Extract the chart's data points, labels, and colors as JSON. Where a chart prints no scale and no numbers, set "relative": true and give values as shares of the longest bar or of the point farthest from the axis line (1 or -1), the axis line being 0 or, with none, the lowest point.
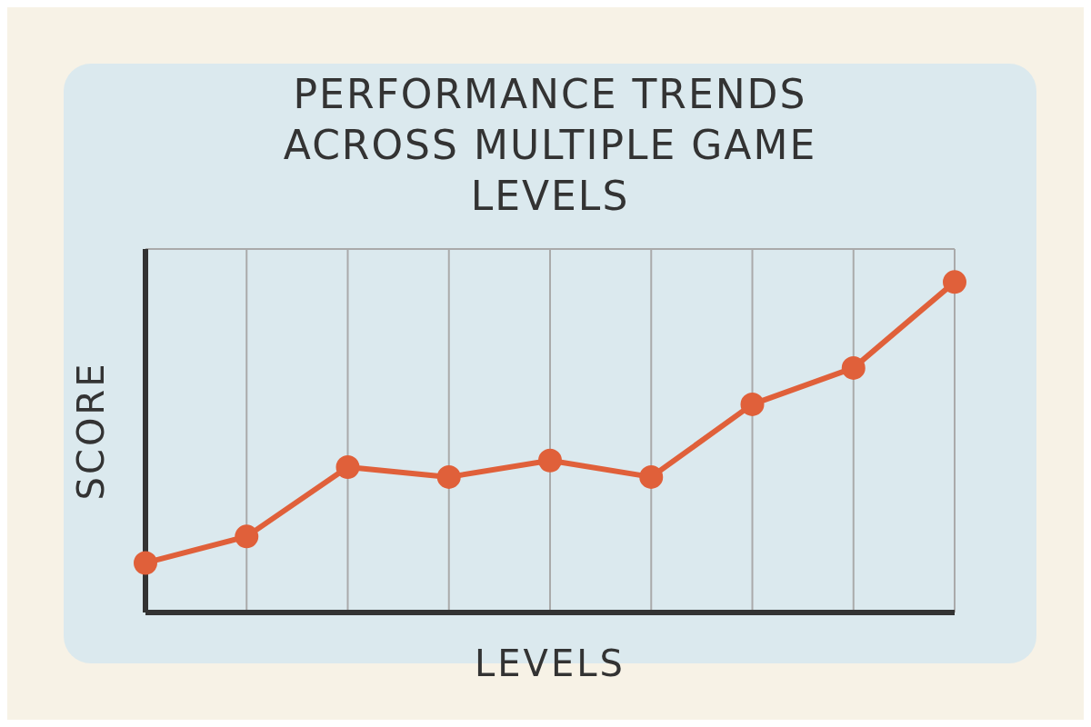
{
  "chart_data": {
    "type": "line",
    "title": "PERFORMANCE TRENDS ACROSS MULTIPLE GAME LEVELS",
    "xlabel": "LEVELS",
    "ylabel": "SCORE",
    "categories": [
      null,
      null,
      null,
      null,
      null,
      null,
      null,
      null,
      null
    ],
    "series": [
      {
        "color": "#e0603a",
        "values": [
          0.15,
          0.23,
          0.44,
          0.41,
          0.46,
          0.41,
          0.63,
          0.74,
          1
        ]
      }
    ],
    "relative": true,
    "grid": true,
    "marker": "circle",
    "line_style": "solid"
  }
}
